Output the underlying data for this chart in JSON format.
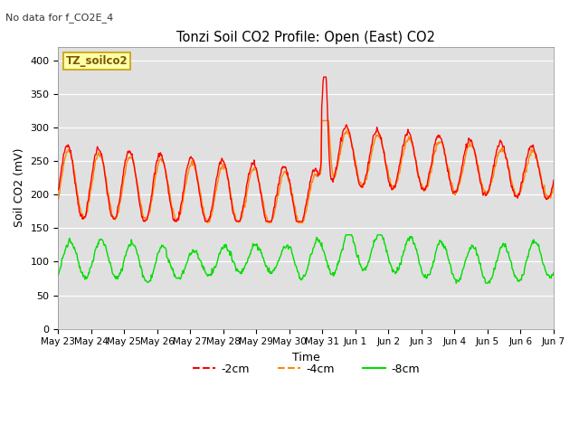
{
  "title": "Tonzi Soil CO2 Profile: Open (East) CO2",
  "no_data_text": "No data for f_CO2E_4",
  "legend_box_text": "TZ_soilco2",
  "ylabel": "Soil CO2 (mV)",
  "xlabel": "Time",
  "ylim": [
    0,
    420
  ],
  "yticks": [
    0,
    50,
    100,
    150,
    200,
    250,
    300,
    350,
    400
  ],
  "bg_color": "#e0e0e0",
  "line_colors": {
    "m2cm": "#ff0000",
    "m4cm": "#ff8800",
    "m8cm": "#00dd00"
  },
  "fig_width": 6.4,
  "fig_height": 4.8,
  "dpi": 100
}
